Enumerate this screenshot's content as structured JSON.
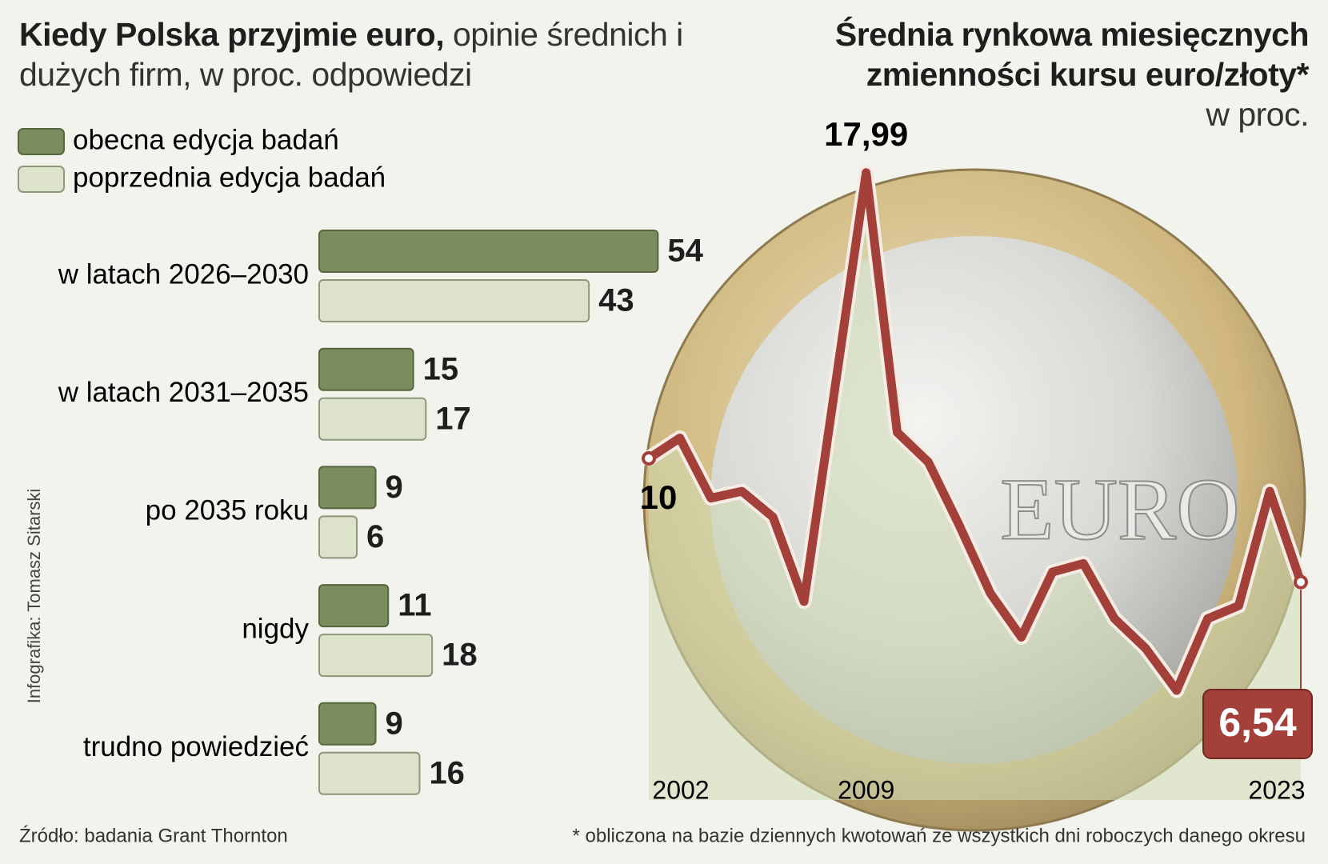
{
  "chart_data": [
    {
      "type": "bar",
      "orientation": "horizontal",
      "title": "Kiedy Polska przyjmie euro,",
      "subtitle": "opinie średnich i dużych firm, w proc. odpowiedzi",
      "categories": [
        "w latach 2026–2030",
        "w latach 2031–2035",
        "po 2035 roku",
        "nigdy",
        "trudno powiedzieć"
      ],
      "series": [
        {
          "name": "obecna edycja badań",
          "color": "#7b8d5f",
          "values": [
            54,
            15,
            9,
            11,
            9
          ]
        },
        {
          "name": "poprzednia edycja badań",
          "color": "#dde3cb",
          "values": [
            43,
            17,
            6,
            18,
            16
          ]
        }
      ]
    },
    {
      "type": "line",
      "title": "Średnia rynkowa miesięcznych zmienności kursu euro/złoty*",
      "subtitle": "w proc.",
      "x": [
        2002,
        2003,
        2004,
        2005,
        2006,
        2007,
        2009,
        2010,
        2011,
        2012,
        2013,
        2014,
        2015,
        2016,
        2017,
        2018,
        2019,
        2020,
        2021,
        2022,
        2023
      ],
      "series": [
        {
          "color": "#a3403a",
          "values": [
            10,
            10.57,
            8.89,
            9.08,
            8.36,
            6.0,
            17.99,
            10.73,
            9.9,
            8.13,
            6.23,
            5.0,
            6.82,
            7.06,
            5.52,
            4.69,
            3.51,
            5.52,
            5.88,
            9.08,
            6.54
          ],
          "value_labels": [
            "10",
            null,
            null,
            null,
            null,
            null,
            "17,99",
            null,
            null,
            null,
            null,
            null,
            null,
            null,
            null,
            null,
            null,
            null,
            null,
            null,
            "6,54"
          ]
        }
      ],
      "xlim": [
        2002,
        2023
      ],
      "xticks": [
        2002,
        2009,
        2023
      ],
      "ylim": [
        0,
        20
      ]
    }
  ],
  "credit": "Infografika: Tomasz Sitarski",
  "source": "Źródło: badania Grant Thornton",
  "footnote": "* obliczona na bazie dziennych kwotowań ze wszystkich dni roboczych danego okresu"
}
